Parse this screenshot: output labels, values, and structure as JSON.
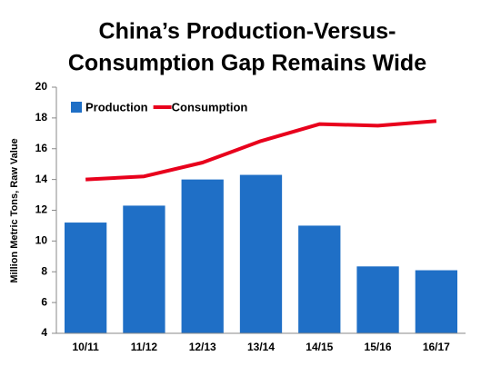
{
  "chart_data": {
    "type": "bar",
    "title": [
      "China’s Production-Versus-",
      "Consumption Gap Remains Wide"
    ],
    "y_label": "Million Metric Tons, Raw Value",
    "categories": [
      "10/11",
      "11/12",
      "12/13",
      "13/14",
      "14/15",
      "15/16",
      "16/17"
    ],
    "series": [
      {
        "name": "Production",
        "type": "bar",
        "color": "#1f6fc6",
        "values": [
          11.2,
          12.3,
          14.0,
          14.3,
          11.0,
          8.35,
          8.1
        ]
      },
      {
        "name": "Consumption",
        "type": "line",
        "color": "#e8001c",
        "values": [
          14.0,
          14.2,
          15.1,
          16.5,
          17.6,
          17.5,
          17.8
        ]
      }
    ],
    "ylim": [
      4,
      20
    ],
    "yticks": [
      4,
      6,
      8,
      10,
      12,
      14,
      16,
      18,
      20
    ],
    "grid": false,
    "legend_position": "top-left"
  }
}
